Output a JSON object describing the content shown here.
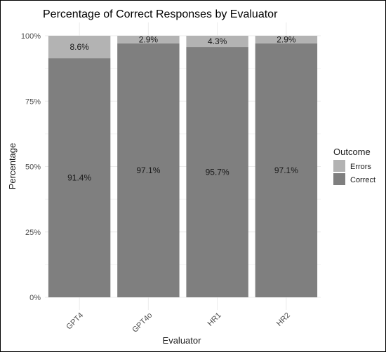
{
  "chart_data": {
    "type": "bar",
    "stacked": true,
    "title": "Percentage of Correct Responses by Evaluator",
    "xlabel": "Evaluator",
    "ylabel": "Percentage",
    "categories": [
      "GPT4",
      "GPT4o",
      "HR1",
      "HR2"
    ],
    "series": [
      {
        "name": "Correct",
        "values": [
          91.4,
          97.1,
          95.7,
          97.1
        ],
        "labels": [
          "91.4%",
          "97.1%",
          "95.7%",
          "97.1%"
        ],
        "color": "#7f7f7f"
      },
      {
        "name": "Errors",
        "values": [
          8.6,
          2.9,
          4.3,
          2.9
        ],
        "labels": [
          "8.6%",
          "2.9%",
          "4.3%",
          "2.9%"
        ],
        "color": "#b3b3b3"
      }
    ],
    "ylim": [
      0,
      100
    ],
    "yticks": [
      0,
      25,
      50,
      75,
      100
    ],
    "ytick_labels": [
      "0%",
      "25%",
      "50%",
      "75%",
      "100%"
    ],
    "grid": true,
    "legend": {
      "title": "Outcome",
      "position": "right",
      "entries": [
        "Errors",
        "Correct"
      ]
    }
  }
}
